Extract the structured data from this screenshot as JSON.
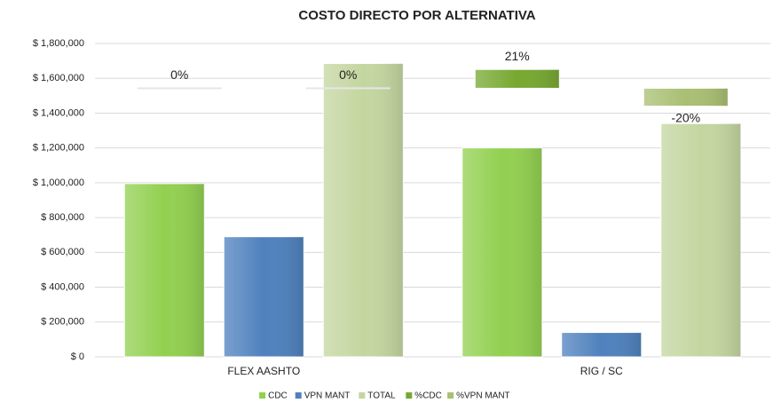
{
  "chart_data": {
    "type": "bar",
    "title": "COSTO DIRECTO POR ALTERNATIVA",
    "categories": [
      "FLEX AASHTO",
      "RIG / SC"
    ],
    "series": [
      {
        "name": "CDC",
        "color": "#92d050",
        "values": [
          995000,
          1200000
        ]
      },
      {
        "name": "VPN MANT",
        "color": "#4f81bd",
        "values": [
          690000,
          140000
        ]
      },
      {
        "name": "TOTAL",
        "color": "#c4d6a0",
        "values": [
          1685000,
          1340000
        ]
      },
      {
        "name": "%CDC",
        "color": "#77a830",
        "axis": "y2",
        "values": [
          0,
          21
        ],
        "value_labels": [
          "0%",
          "21%"
        ]
      },
      {
        "name": "%VPN MANT",
        "color": "#a9bf72",
        "axis": "y2",
        "values": [
          0,
          -20
        ],
        "value_labels": [
          "0%",
          "-20%"
        ]
      }
    ],
    "ylim": [
      0,
      1800000
    ],
    "yticks": [
      {
        "value": 0,
        "label": "$ 0"
      },
      {
        "value": 200000,
        "label": "$ 200,000"
      },
      {
        "value": 400000,
        "label": "$ 400,000"
      },
      {
        "value": 600000,
        "label": "$ 600,000"
      },
      {
        "value": 800000,
        "label": "$ 800,000"
      },
      {
        "value": 1000000,
        "label": "$ 1,000,000"
      },
      {
        "value": 1200000,
        "label": "$ 1,200,000"
      },
      {
        "value": 1400000,
        "label": "$ 1,400,000"
      },
      {
        "value": 1600000,
        "label": "$ 1,600,000"
      },
      {
        "value": 1800000,
        "label": "$ 1,800,000"
      }
    ],
    "y2lim": [
      -300,
      50
    ],
    "grid": true,
    "legend": "bottom"
  }
}
